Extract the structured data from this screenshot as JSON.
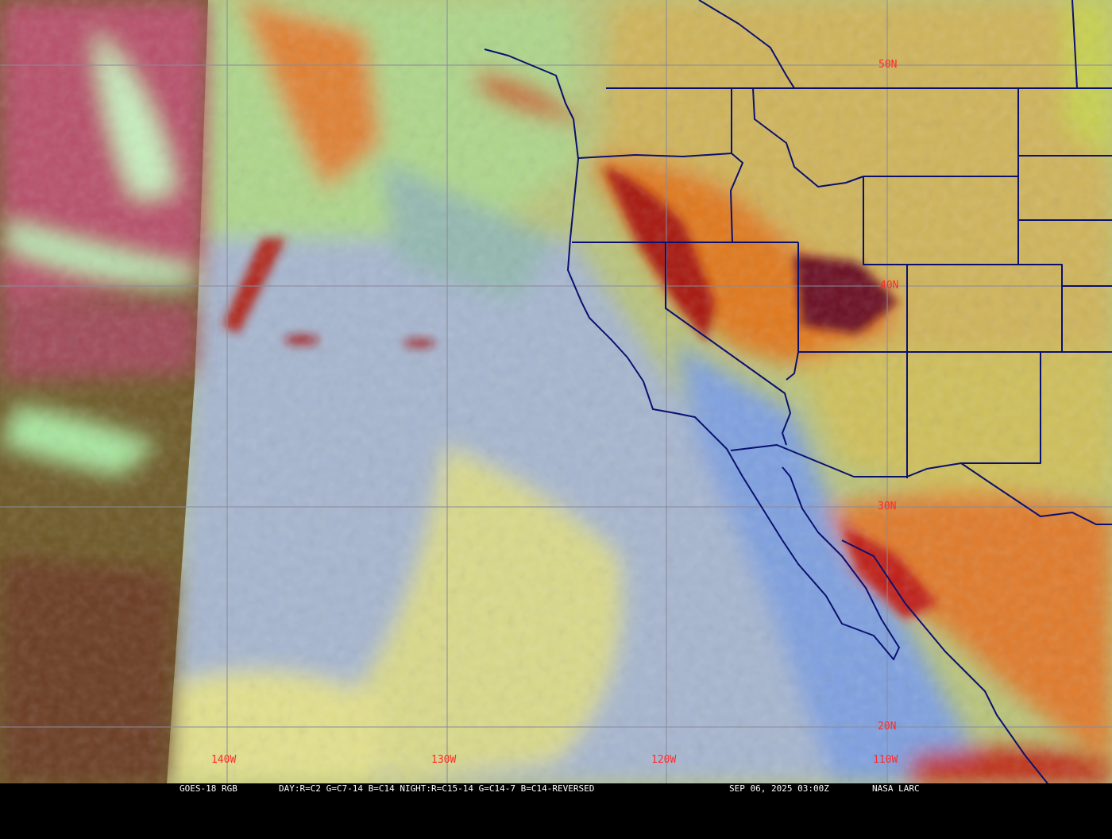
{
  "image": {
    "caption": {
      "product": "GOES-18 RGB",
      "recipe": "DAY:R=C2 G=C7-14 B=C14 NIGHT:R=C15-14 G=C14-7 B=C14-REVERSED",
      "timestamp": "SEP 06, 2025 03:00Z",
      "credit": "NASA LARC"
    },
    "latitude_labels": [
      "50N",
      "40N",
      "30N",
      "20N"
    ],
    "longitude_labels": [
      "140W",
      "130W",
      "120W",
      "110W"
    ],
    "colors": {
      "grid": "#8a8a9a",
      "borders": "#0a1070",
      "labels": "#ff2a2a",
      "night_side": "#5a4a20",
      "ocean_low_cloud": "#9fb0d0",
      "smoke_high_cloud": "#e07020"
    }
  }
}
